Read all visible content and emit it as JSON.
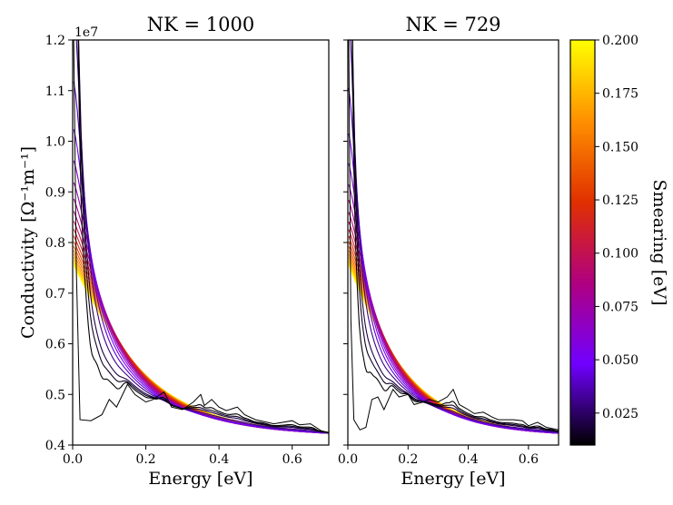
{
  "chart_data": {
    "type": "line",
    "ylabel": "Conductivity [Ω⁻¹m⁻¹]",
    "y_multiplier": "1e7",
    "colorbar": {
      "label": "Smearing [eV]",
      "range": [
        0.01,
        0.2
      ],
      "ticks": [
        "0.025",
        "0.050",
        "0.075",
        "0.100",
        "0.125",
        "0.150",
        "0.175",
        "0.200"
      ],
      "cmap_stops": [
        "#000000",
        "#7000ff",
        "#b00080",
        "#e03000",
        "#ff9000",
        "#ffff00"
      ]
    },
    "smearings": [
      0.01,
      0.015,
      0.02,
      0.03,
      0.04,
      0.05,
      0.06,
      0.07,
      0.08,
      0.09,
      0.1,
      0.11,
      0.12,
      0.13,
      0.14,
      0.15,
      0.16,
      0.17,
      0.18,
      0.19,
      0.2
    ],
    "panels": [
      {
        "title": "NK = 1000",
        "xlabel": "Energy [eV]",
        "xlim": [
          0,
          0.7
        ],
        "ylim": [
          4000000,
          12000000
        ],
        "xticks": [
          "0.0",
          "0.2",
          "0.4",
          "0.6"
        ],
        "yticks": [
          "0.4",
          "0.5",
          "0.6",
          "0.7",
          "0.8",
          "0.9",
          "1.0",
          "1.1",
          "1.2"
        ],
        "raw_curve": {
          "x": [
            0.003,
            0.01,
            0.02,
            0.05,
            0.08,
            0.1,
            0.12,
            0.15,
            0.17,
            0.2,
            0.22,
            0.25,
            0.27,
            0.3,
            0.33,
            0.35,
            0.36,
            0.38,
            0.4,
            0.42,
            0.45,
            0.47,
            0.5,
            0.55,
            0.6,
            0.62,
            0.65,
            0.68,
            0.7
          ],
          "y": [
            12000000,
            7500000,
            4500000,
            4480000,
            4600000,
            4900000,
            4750000,
            5200000,
            5000000,
            4850000,
            4900000,
            5050000,
            4750000,
            4700000,
            4850000,
            5000000,
            4780000,
            4900000,
            4750000,
            4680000,
            4750000,
            4600000,
            4500000,
            4420000,
            4480000,
            4400000,
            4420000,
            4280000,
            4250000
          ]
        }
      },
      {
        "title": "NK = 729",
        "xlabel": "Energy [eV]",
        "xlim": [
          0,
          0.7
        ],
        "ylim": [
          4000000,
          12000000
        ],
        "xticks": [
          "0.0",
          "0.2",
          "0.4",
          "0.6"
        ],
        "yticks": [],
        "raw_curve": {
          "x": [
            0.003,
            0.01,
            0.02,
            0.04,
            0.06,
            0.08,
            0.1,
            0.12,
            0.15,
            0.17,
            0.2,
            0.22,
            0.25,
            0.27,
            0.3,
            0.33,
            0.35,
            0.37,
            0.4,
            0.42,
            0.45,
            0.48,
            0.5,
            0.55,
            0.58,
            0.6,
            0.63,
            0.66,
            0.7
          ],
          "y": [
            12000000,
            6500000,
            4500000,
            4300000,
            4350000,
            4900000,
            4950000,
            4700000,
            5100000,
            4950000,
            5000000,
            4800000,
            4850000,
            4900000,
            4850000,
            4950000,
            5100000,
            4800000,
            4700000,
            4620000,
            4650000,
            4550000,
            4500000,
            4500000,
            4480000,
            4380000,
            4450000,
            4350000,
            4300000
          ]
        }
      }
    ]
  }
}
